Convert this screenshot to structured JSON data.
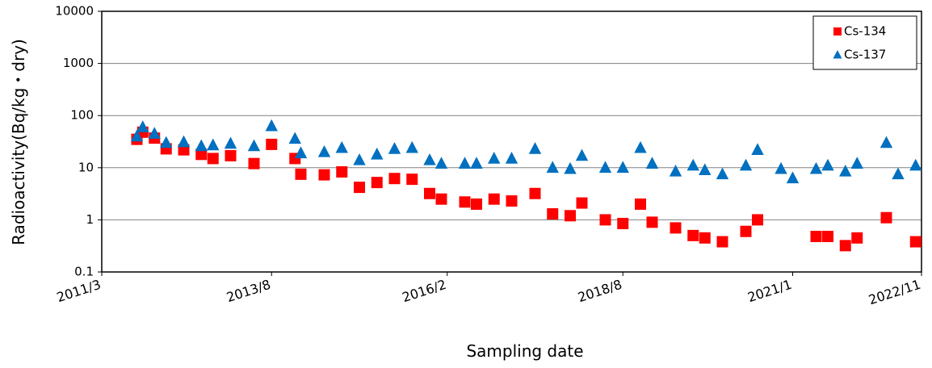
{
  "chart_data": {
    "type": "scatter",
    "y_label": "Radioactivity(Bq/kg・dry)",
    "x_label": "Sampling date",
    "log_y": true,
    "grid": true,
    "legend": "top-right",
    "xlim": [
      "2011/3",
      "2022/11"
    ],
    "xticks": [
      "2011/3",
      "2013/8",
      "2016/2",
      "2018/8",
      "2021/1",
      "2022/11"
    ],
    "ylim": [
      0.1,
      10000
    ],
    "yticks": [
      0.1,
      1,
      10,
      100,
      1000,
      10000
    ],
    "series": [
      {
        "name": "Cs-134",
        "color": "#ff0000",
        "marker": "square",
        "x": [
          "2011/9",
          "2011/10",
          "2011/12",
          "2012/2",
          "2012/5",
          "2012/8",
          "2012/10",
          "2013/1",
          "2013/5",
          "2013/8",
          "2013/12",
          "2014/1",
          "2014/5",
          "2014/8",
          "2014/11",
          "2015/2",
          "2015/5",
          "2015/8",
          "2015/11",
          "2016/1",
          "2016/5",
          "2016/7",
          "2016/10",
          "2017/1",
          "2017/5",
          "2017/8",
          "2017/11",
          "2018/1",
          "2018/5",
          "2018/8",
          "2018/11",
          "2019/1",
          "2019/5",
          "2019/8",
          "2019/10",
          "2020/1",
          "2020/5",
          "2020/7",
          "2021/5",
          "2021/7",
          "2021/10",
          "2021/12",
          "2022/5",
          "2022/10"
        ],
        "values": [
          35,
          48,
          37,
          23,
          22,
          18,
          15,
          17,
          12,
          28,
          15,
          7.5,
          7.3,
          8.3,
          4.2,
          5.2,
          6.2,
          6,
          3.2,
          2.5,
          2.2,
          2,
          2.5,
          2.3,
          3.2,
          1.3,
          1.2,
          2.1,
          1,
          0.85,
          2,
          0.9,
          0.7,
          0.5,
          0.45,
          0.38,
          0.6,
          1,
          0.48,
          0.48,
          0.32,
          0.45,
          1.1,
          0.38
        ]
      },
      {
        "name": "Cs-137",
        "color": "#0070c0",
        "marker": "triangle",
        "x": [
          "2011/9",
          "2011/10",
          "2011/12",
          "2012/2",
          "2012/5",
          "2012/8",
          "2012/10",
          "2013/1",
          "2013/5",
          "2013/8",
          "2013/12",
          "2014/1",
          "2014/5",
          "2014/8",
          "2014/11",
          "2015/2",
          "2015/5",
          "2015/8",
          "2015/11",
          "2016/1",
          "2016/5",
          "2016/7",
          "2016/10",
          "2017/1",
          "2017/5",
          "2017/8",
          "2017/11",
          "2018/1",
          "2018/5",
          "2018/8",
          "2018/11",
          "2019/1",
          "2019/5",
          "2019/8",
          "2019/10",
          "2020/1",
          "2020/5",
          "2020/7",
          "2020/11",
          "2021/1",
          "2021/5",
          "2021/7",
          "2021/10",
          "2021/12",
          "2022/5",
          "2022/7",
          "2022/10"
        ],
        "values": [
          40,
          60,
          45,
          30,
          31,
          26,
          27,
          29,
          26,
          63,
          36,
          19,
          20,
          24,
          14,
          18,
          23,
          24,
          14,
          12,
          12,
          12,
          15,
          15,
          23,
          10,
          9.5,
          17,
          10,
          10,
          24,
          12,
          8.5,
          11,
          9,
          7.5,
          11,
          22,
          9.5,
          6.3,
          9.5,
          11,
          8.5,
          12,
          30,
          7.5,
          11
        ]
      }
    ]
  }
}
